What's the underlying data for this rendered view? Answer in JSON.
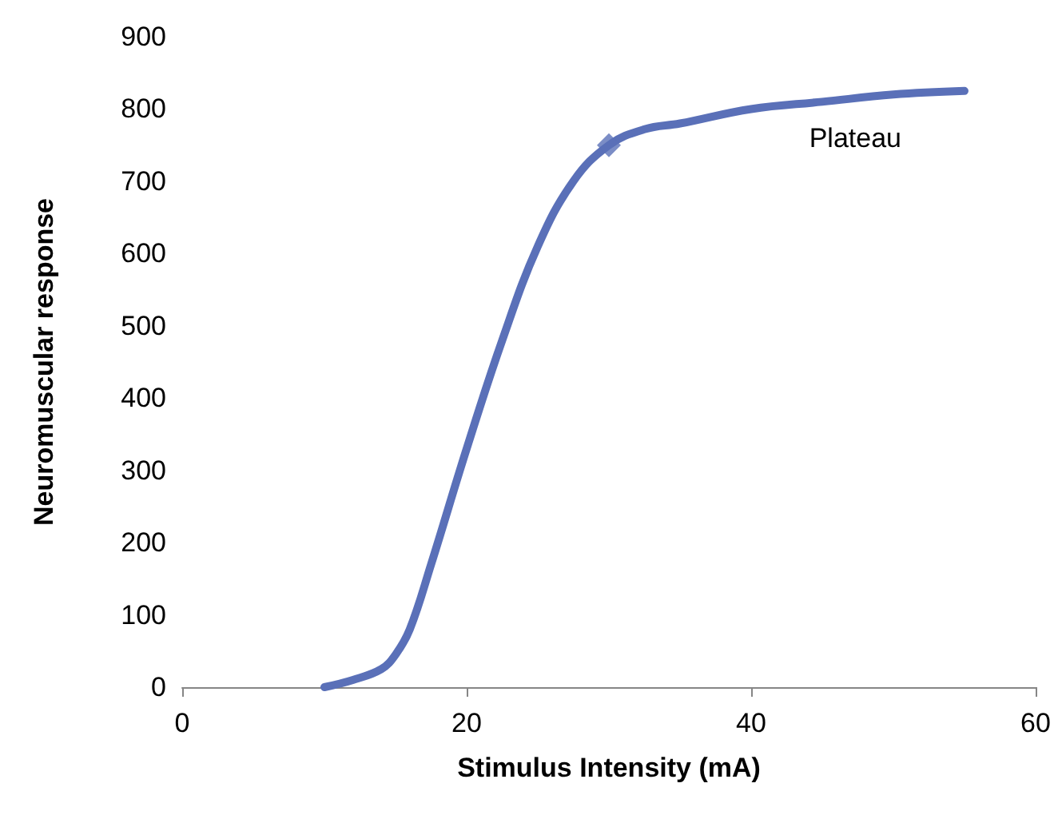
{
  "chart_data": {
    "type": "line",
    "xlabel": "Stimulus Intensity (mA)",
    "ylabel": "Neuromuscular response",
    "series": [
      {
        "color": "#5a70b8",
        "x": [
          10,
          12,
          14,
          15,
          16,
          17.5,
          20,
          22.5,
          25,
          27.5,
          30,
          32.5,
          35,
          40,
          45,
          50,
          55
        ],
        "values": [
          0,
          10,
          25,
          45,
          80,
          170,
          330,
          480,
          610,
          700,
          750,
          772,
          780,
          800,
          810,
          820,
          825
        ],
        "marker": "none"
      },
      {
        "type": "scatter",
        "color": "#5a70b8",
        "x": [
          30
        ],
        "values": [
          750
        ],
        "marker": "diamond"
      }
    ],
    "annotations": [
      "Plateau"
    ],
    "xlim": [
      0,
      60
    ],
    "xticks": [
      0,
      20,
      40,
      60
    ],
    "ylim": [
      0,
      900
    ],
    "yticks": [
      0,
      100,
      200,
      300,
      400,
      500,
      600,
      700,
      800,
      900
    ],
    "grid": false,
    "line_style": "solid"
  }
}
